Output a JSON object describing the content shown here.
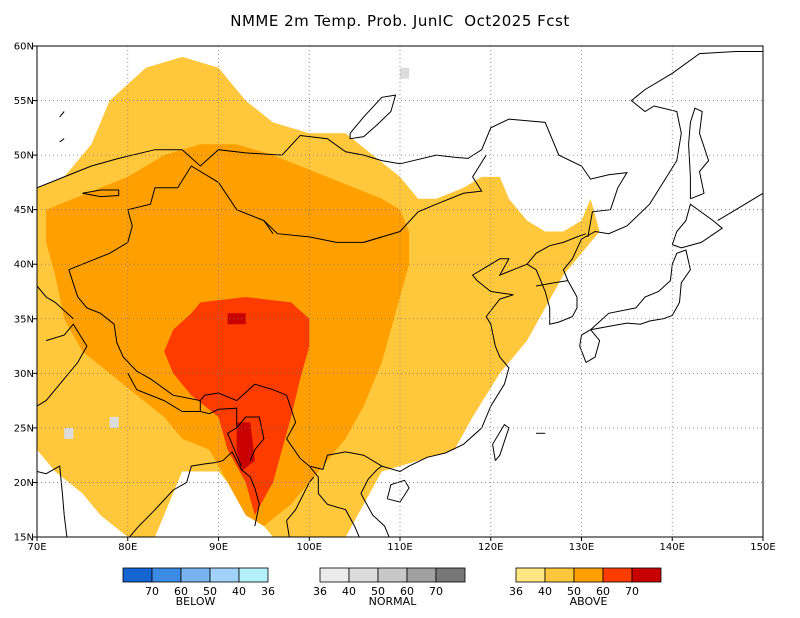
{
  "title": "NMME 2m Temp. Prob. JunIC  Oct2025 Fcst",
  "map": {
    "lon_range": [
      70,
      150
    ],
    "lat_range": [
      15,
      60
    ],
    "x_ticks": [
      {
        "lon": 70,
        "label": "70E"
      },
      {
        "lon": 80,
        "label": "80E"
      },
      {
        "lon": 90,
        "label": "90E"
      },
      {
        "lon": 100,
        "label": "100E"
      },
      {
        "lon": 110,
        "label": "110E"
      },
      {
        "lon": 120,
        "label": "120E"
      },
      {
        "lon": 130,
        "label": "130E"
      },
      {
        "lon": 140,
        "label": "140E"
      },
      {
        "lon": 150,
        "label": "150E"
      }
    ],
    "y_ticks": [
      {
        "lat": 15,
        "label": "15N"
      },
      {
        "lat": 20,
        "label": "20N"
      },
      {
        "lat": 25,
        "label": "25N"
      },
      {
        "lat": 30,
        "label": "30N"
      },
      {
        "lat": 35,
        "label": "35N"
      },
      {
        "lat": 40,
        "label": "40N"
      },
      {
        "lat": 45,
        "label": "45N"
      },
      {
        "lat": 50,
        "label": "50N"
      },
      {
        "lat": 55,
        "label": "55N"
      },
      {
        "lat": 60,
        "label": "60N"
      }
    ],
    "grid": "dotted",
    "above_regions": [
      {
        "level": 40,
        "poly": [
          [
            70,
            47
          ],
          [
            73,
            48
          ],
          [
            76,
            51
          ],
          [
            78,
            55
          ],
          [
            82,
            58
          ],
          [
            86,
            59
          ],
          [
            90,
            58
          ],
          [
            93,
            55
          ],
          [
            96,
            53
          ],
          [
            100,
            52
          ],
          [
            104,
            52
          ],
          [
            107,
            50
          ],
          [
            110,
            48
          ],
          [
            112,
            46
          ],
          [
            114,
            46
          ],
          [
            117,
            47
          ],
          [
            119,
            48
          ],
          [
            121,
            48
          ],
          [
            122,
            46
          ],
          [
            124,
            44
          ],
          [
            126,
            43
          ],
          [
            128,
            43
          ],
          [
            130,
            44
          ],
          [
            131,
            46
          ],
          [
            132,
            43
          ],
          [
            130,
            41
          ],
          [
            128,
            39
          ],
          [
            126,
            36
          ],
          [
            124,
            33
          ],
          [
            121,
            30
          ],
          [
            118,
            26
          ],
          [
            116,
            23
          ],
          [
            112,
            22
          ],
          [
            108,
            21
          ],
          [
            106,
            18
          ],
          [
            104,
            15
          ],
          [
            100,
            15
          ],
          [
            96,
            15
          ],
          [
            93,
            18
          ],
          [
            90,
            21
          ],
          [
            86,
            21
          ],
          [
            83,
            15
          ],
          [
            80,
            15
          ],
          [
            77,
            17
          ],
          [
            75,
            19
          ],
          [
            72,
            21
          ],
          [
            70,
            23
          ]
        ]
      },
      {
        "level": 50,
        "poly": [
          [
            71,
            45
          ],
          [
            74,
            46
          ],
          [
            77,
            47
          ],
          [
            80,
            48
          ],
          [
            84,
            50
          ],
          [
            88,
            51
          ],
          [
            92,
            51
          ],
          [
            96,
            50
          ],
          [
            99,
            49
          ],
          [
            102,
            48
          ],
          [
            105,
            47
          ],
          [
            108,
            46
          ],
          [
            110,
            45
          ],
          [
            111,
            43
          ],
          [
            111,
            40
          ],
          [
            110,
            37
          ],
          [
            109,
            34
          ],
          [
            108,
            31
          ],
          [
            106,
            27
          ],
          [
            104,
            24
          ],
          [
            101,
            21
          ],
          [
            98,
            18
          ],
          [
            95,
            16
          ],
          [
            93,
            17
          ],
          [
            91,
            20
          ],
          [
            89,
            23
          ],
          [
            86,
            24
          ],
          [
            84,
            26
          ],
          [
            81,
            28
          ],
          [
            78,
            30
          ],
          [
            75,
            32
          ],
          [
            73,
            35
          ],
          [
            72,
            39
          ],
          [
            71,
            42
          ]
        ]
      },
      {
        "level": 60,
        "poly": [
          [
            88,
            36.5
          ],
          [
            93,
            37
          ],
          [
            98,
            36.5
          ],
          [
            100,
            35
          ],
          [
            100,
            32.5
          ],
          [
            99,
            29.5
          ],
          [
            98,
            26
          ],
          [
            97,
            23
          ],
          [
            96,
            20
          ],
          [
            94,
            17
          ],
          [
            93,
            20
          ],
          [
            91,
            23
          ],
          [
            90,
            26
          ],
          [
            87,
            28
          ],
          [
            85,
            30
          ],
          [
            84,
            32
          ],
          [
            85,
            34
          ],
          [
            87,
            35.5
          ]
        ]
      },
      {
        "level": 70,
        "poly": [
          [
            91,
            35.5
          ],
          [
            93,
            35.5
          ],
          [
            93,
            34.5
          ],
          [
            91,
            34.5
          ]
        ]
      },
      {
        "level": 70,
        "poly": [
          [
            92,
            25.5
          ],
          [
            93.5,
            25.5
          ],
          [
            94,
            22
          ],
          [
            92.5,
            21
          ],
          [
            92,
            23
          ]
        ]
      }
    ],
    "normal_cells": [
      {
        "lon": 110,
        "lat": 57,
        "level": 40
      },
      {
        "lon": 78,
        "lat": 25,
        "level": 40
      },
      {
        "lon": 73,
        "lat": 24,
        "level": 40
      }
    ]
  },
  "legend": {
    "groups": [
      {
        "name": "BELOW",
        "colors": [
          "#1464d2",
          "#3c8ce6",
          "#78b4f0",
          "#a0d2fa",
          "#b4f0fa"
        ],
        "ticks": [
          "70",
          "60",
          "50",
          "40",
          "36"
        ]
      },
      {
        "name": "NORMAL",
        "colors": [
          "#ebebeb",
          "#dcdcdc",
          "#c8c8c8",
          "#a0a0a0",
          "#787878"
        ],
        "ticks": [
          "36",
          "40",
          "50",
          "60",
          "70"
        ]
      },
      {
        "name": "ABOVE",
        "colors": [
          "#ffe682",
          "#ffc83c",
          "#ffa000",
          "#ff3c00",
          "#c80000"
        ],
        "ticks": [
          "36",
          "40",
          "50",
          "60",
          "70"
        ]
      }
    ]
  }
}
